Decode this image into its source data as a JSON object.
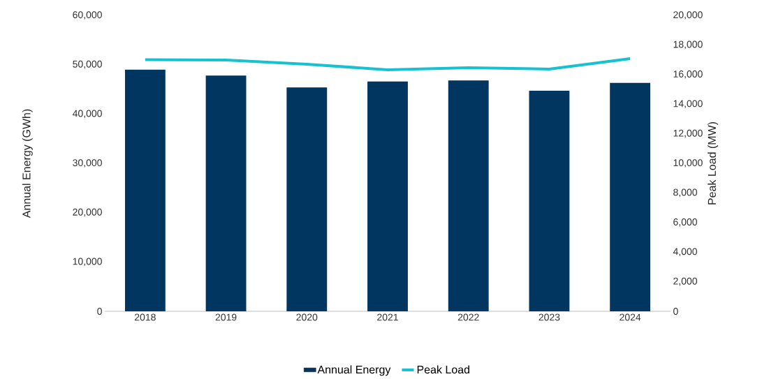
{
  "chart_data": {
    "type": "bar",
    "categories": [
      "2018",
      "2019",
      "2020",
      "2021",
      "2022",
      "2023",
      "2024"
    ],
    "series": [
      {
        "name": "Annual Energy",
        "color": "#003660",
        "values": [
          49000,
          47800,
          45400,
          46600,
          46800,
          44700,
          46300
        ]
      },
      {
        "name": "Peak Load",
        "type": "line",
        "axis": "y2",
        "color": "#17c2d0",
        "values": [
          17000,
          16980,
          16700,
          16320,
          16460,
          16370,
          17080
        ]
      }
    ],
    "ylabel": "Annual Energy (GWh)",
    "y2label": "Peak Load (MW)",
    "ylim": [
      0,
      60000
    ],
    "yticks": [
      0,
      {
        "value": 10000,
        "label": "10,000"
      },
      {
        "value": 20000,
        "label": "20,000"
      },
      {
        "value": 30000,
        "label": "30,000"
      },
      {
        "value": 40000,
        "label": "40,000"
      },
      {
        "value": 50000,
        "label": "50,000"
      },
      {
        "value": 60000,
        "label": "60,000"
      }
    ],
    "y2lim": [
      0,
      20000
    ],
    "y2ticks": [
      0,
      {
        "value": 2000,
        "label": "2,000"
      },
      {
        "value": 4000,
        "label": "4,000"
      },
      {
        "value": 6000,
        "label": "6,000"
      },
      {
        "value": 8000,
        "label": "8,000"
      },
      {
        "value": 10000,
        "label": "10,000"
      },
      {
        "value": 12000,
        "label": "12,000"
      },
      {
        "value": 14000,
        "label": "14,000"
      },
      {
        "value": 16000,
        "label": "16,000"
      },
      {
        "value": 18000,
        "label": "18,000"
      },
      {
        "value": 20000,
        "label": "20,000"
      }
    ],
    "legend": "bottom",
    "marker": "none",
    "line_style": "solid"
  }
}
